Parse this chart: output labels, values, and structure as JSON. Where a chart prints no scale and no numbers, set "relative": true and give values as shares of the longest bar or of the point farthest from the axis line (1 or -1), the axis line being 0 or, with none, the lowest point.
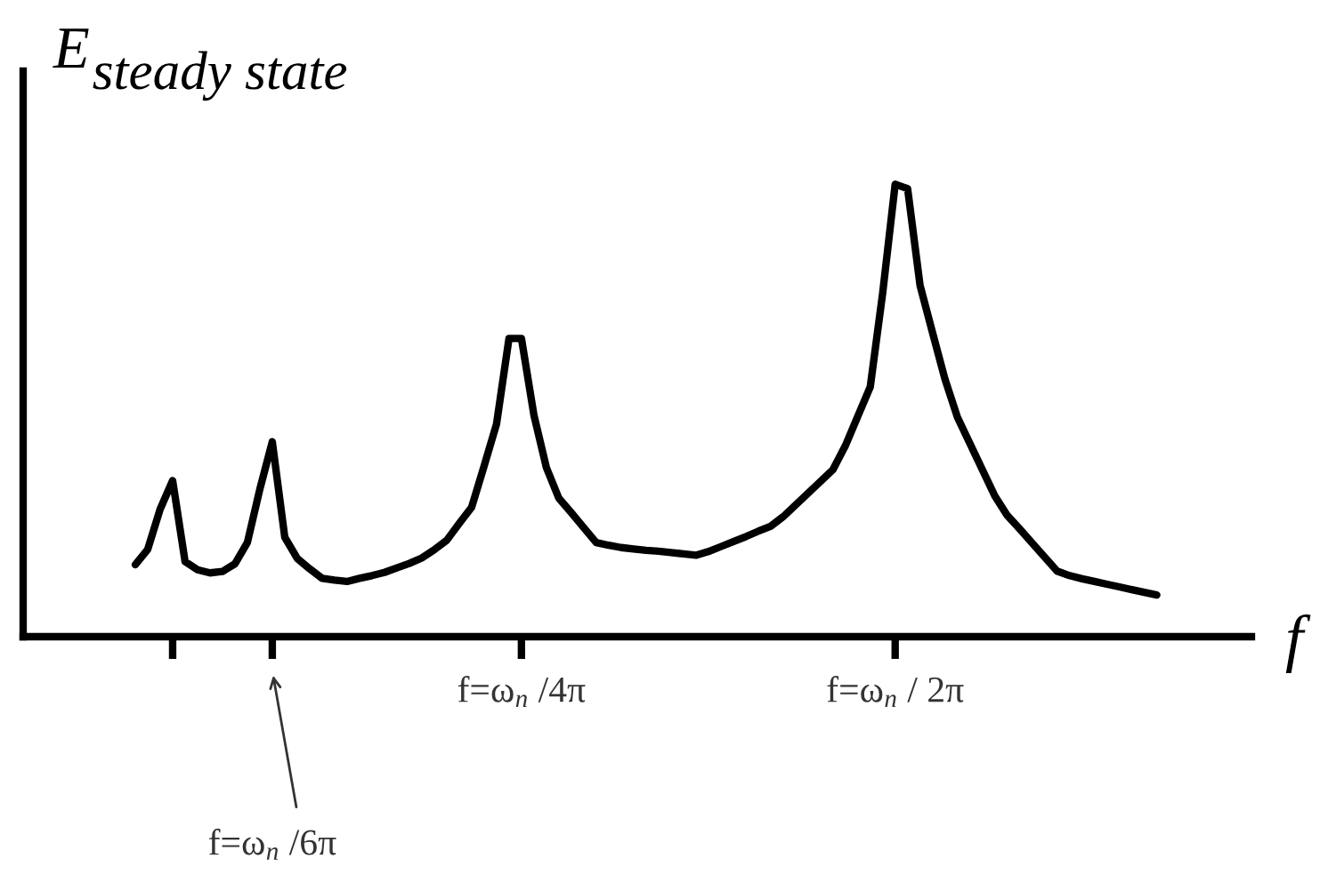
{
  "chart_data": {
    "type": "line",
    "relative": true,
    "ylabel": "E$_{steady state}$",
    "xlabel": "f",
    "categories": [
      null,
      null,
      null,
      null,
      null,
      null,
      null,
      null,
      null,
      null,
      null,
      null,
      null,
      null,
      null,
      null,
      null,
      null,
      null,
      null,
      null,
      null,
      null,
      null,
      null,
      null,
      null,
      null,
      null,
      null,
      null,
      null,
      null,
      null,
      null,
      null,
      null,
      null,
      null,
      null,
      "f=ω$_{n}$ /4π",
      null,
      null,
      null,
      null,
      null,
      null,
      null,
      null,
      null,
      null,
      null,
      null,
      null,
      null,
      null,
      null,
      null,
      null,
      null,
      null,
      null,
      null,
      null,
      null,
      null,
      null,
      null,
      null,
      null,
      "f=ω$_{n}$ / 2π",
      null,
      null,
      null,
      null,
      null,
      null,
      null,
      null,
      null,
      null,
      null,
      null,
      null,
      null,
      null,
      null,
      null,
      null,
      null,
      null,
      null,
      null,
      null,
      null,
      null,
      null,
      null,
      null
    ],
    "series": [
      {
        "color": "#000000",
        "values": [
          null,
          null,
          null,
          null,
          null,
          null,
          null,
          null,
          null,
          0.159,
          0.193,
          0.282,
          0.345,
          0.166,
          0.148,
          0.141,
          0.144,
          0.161,
          0.208,
          0.326,
          0.431,
          0.22,
          0.173,
          0.15,
          0.129,
          0.125,
          0.122,
          0.129,
          0.135,
          0.142,
          0.152,
          0.162,
          0.174,
          0.192,
          0.213,
          0.25,
          0.286,
          0.377,
          0.47,
          0.659,
          0.659,
          0.49,
          0.374,
          0.306,
          0.274,
          0.241,
          0.208,
          0.202,
          0.197,
          0.194,
          0.191,
          0.189,
          0.186,
          0.183,
          0.18,
          0.188,
          0.199,
          0.21,
          0.221,
          0.233,
          0.244,
          0.265,
          0.291,
          0.317,
          0.343,
          0.369,
          0.422,
          0.487,
          0.552,
          0.76,
          1.0,
          0.99,
          0.776,
          0.672,
          0.569,
          0.485,
          0.427,
          0.369,
          0.311,
          0.268,
          0.238,
          0.207,
          0.176,
          0.145,
          0.135,
          0.128,
          0.122,
          0.116,
          0.11,
          0.104,
          0.098,
          0.092,
          null,
          null,
          null,
          null,
          null,
          null,
          null
        ]
      }
    ],
    "annotations": [
      "f=ω$_{n}$ /6π"
    ],
    "grid": false,
    "legend": false,
    "marker": "none",
    "line_style": "solid"
  }
}
